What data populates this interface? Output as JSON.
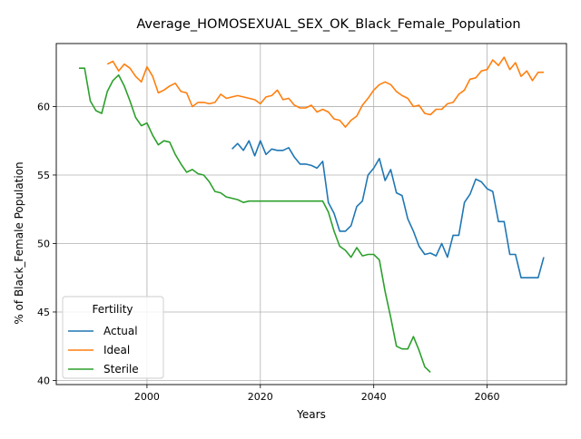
{
  "chart_data": {
    "type": "line",
    "title": "Average_HOMOSEXUAL_SEX_OK_Black_Female_Population",
    "xlabel": "Years",
    "ylabel": "% of Black_Female Population",
    "xlim": [
      1984,
      2074
    ],
    "ylim": [
      39.7,
      64.6
    ],
    "xticks": [
      2000,
      2020,
      2040,
      2060
    ],
    "yticks": [
      40,
      45,
      50,
      55,
      60
    ],
    "grid": true,
    "legend": {
      "title": "Fertility",
      "placement": "lower-left"
    },
    "series": [
      {
        "name": "Actual",
        "color": "#1f77b4",
        "x": [
          2015,
          2016,
          2017,
          2018,
          2019,
          2020,
          2021,
          2022,
          2023,
          2024,
          2025,
          2026,
          2027,
          2028,
          2029,
          2030,
          2031,
          2032,
          2033,
          2034,
          2035,
          2036,
          2037,
          2038,
          2039,
          2040,
          2041,
          2042,
          2043,
          2044,
          2045,
          2046,
          2047,
          2048,
          2049,
          2050,
          2051,
          2052,
          2053,
          2054,
          2055,
          2056,
          2057,
          2058,
          2059,
          2060,
          2061,
          2062,
          2063,
          2064,
          2065,
          2066,
          2067,
          2068,
          2069,
          2070
        ],
        "y": [
          56.9,
          57.3,
          56.8,
          57.5,
          56.4,
          57.5,
          56.5,
          56.9,
          56.8,
          56.8,
          57.0,
          56.3,
          55.8,
          55.8,
          55.7,
          55.5,
          56.0,
          53.0,
          52.2,
          50.9,
          50.9,
          51.3,
          52.7,
          53.1,
          55.0,
          55.5,
          56.2,
          54.6,
          55.4,
          53.7,
          53.5,
          51.8,
          50.9,
          49.8,
          49.2,
          49.3,
          49.1,
          50.0,
          49.0,
          50.6,
          50.6,
          53.0,
          53.6,
          54.7,
          54.5,
          54.0,
          53.8,
          51.6,
          51.6,
          49.2,
          49.2,
          47.5,
          47.5,
          47.5,
          47.5,
          49.0
        ]
      },
      {
        "name": "Ideal",
        "color": "#ff7f0e",
        "x": [
          1993,
          1994,
          1995,
          1996,
          1997,
          1998,
          1999,
          2000,
          2001,
          2002,
          2003,
          2004,
          2005,
          2006,
          2007,
          2008,
          2009,
          2010,
          2011,
          2012,
          2013,
          2014,
          2015,
          2016,
          2017,
          2018,
          2019,
          2020,
          2021,
          2022,
          2023,
          2024,
          2025,
          2026,
          2027,
          2028,
          2029,
          2030,
          2031,
          2032,
          2033,
          2034,
          2035,
          2036,
          2037,
          2038,
          2039,
          2040,
          2041,
          2042,
          2043,
          2044,
          2045,
          2046,
          2047,
          2048,
          2049,
          2050,
          2051,
          2052,
          2053,
          2054,
          2055,
          2056,
          2057,
          2058,
          2059,
          2060,
          2061,
          2062,
          2063,
          2064,
          2065,
          2066,
          2067,
          2068,
          2069,
          2070
        ],
        "y": [
          63.1,
          63.3,
          62.6,
          63.1,
          62.8,
          62.2,
          61.8,
          62.9,
          62.2,
          61.0,
          61.2,
          61.5,
          61.7,
          61.1,
          61.0,
          60.0,
          60.3,
          60.3,
          60.2,
          60.3,
          60.9,
          60.6,
          60.7,
          60.8,
          60.7,
          60.6,
          60.5,
          60.2,
          60.7,
          60.8,
          61.2,
          60.5,
          60.6,
          60.1,
          59.9,
          59.9,
          60.1,
          59.6,
          59.8,
          59.6,
          59.1,
          59.0,
          58.5,
          59.0,
          59.3,
          60.1,
          60.6,
          61.2,
          61.6,
          61.8,
          61.6,
          61.1,
          60.8,
          60.6,
          60.0,
          60.1,
          59.5,
          59.4,
          59.8,
          59.8,
          60.2,
          60.3,
          60.9,
          61.2,
          62.0,
          62.1,
          62.6,
          62.7,
          63.4,
          63.0,
          63.6,
          62.7,
          63.2,
          62.2,
          62.6,
          61.9,
          62.5,
          62.5
        ]
      },
      {
        "name": "Sterile",
        "color": "#2ca02c",
        "x": [
          1988,
          1989,
          1990,
          1991,
          1992,
          1993,
          1994,
          1995,
          1996,
          1997,
          1998,
          1999,
          2000,
          2001,
          2002,
          2003,
          2004,
          2005,
          2006,
          2007,
          2008,
          2009,
          2010,
          2011,
          2012,
          2013,
          2014,
          2015,
          2016,
          2017,
          2018,
          2019,
          2020,
          2021,
          2022,
          2023,
          2024,
          2025,
          2026,
          2027,
          2028,
          2029,
          2030,
          2031,
          2032,
          2033,
          2034,
          2035,
          2036,
          2037,
          2038,
          2039,
          2040,
          2041,
          2042,
          2043,
          2044,
          2045,
          2046,
          2047,
          2048,
          2049,
          2050
        ],
        "y": [
          62.8,
          62.8,
          60.4,
          59.7,
          59.5,
          61.1,
          61.9,
          62.3,
          61.5,
          60.4,
          59.2,
          58.6,
          58.8,
          57.9,
          57.2,
          57.5,
          57.4,
          56.5,
          55.8,
          55.2,
          55.4,
          55.1,
          55.0,
          54.5,
          53.8,
          53.7,
          53.4,
          53.3,
          53.2,
          53.0,
          53.1,
          53.1,
          53.1,
          53.1,
          53.1,
          53.1,
          53.1,
          53.1,
          53.1,
          53.1,
          53.1,
          53.1,
          53.1,
          53.1,
          52.3,
          50.9,
          49.8,
          49.5,
          49.0,
          49.7,
          49.1,
          49.2,
          49.2,
          48.8,
          46.5,
          44.6,
          42.5,
          42.3,
          42.3,
          43.2,
          42.2,
          41.0,
          40.6
        ]
      }
    ]
  }
}
